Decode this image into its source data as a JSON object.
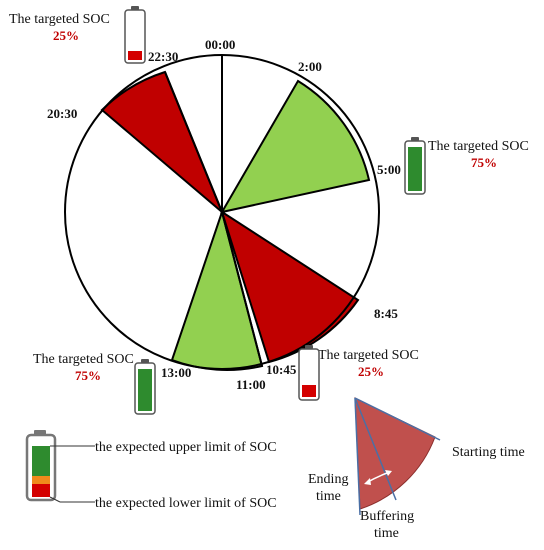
{
  "clock": {
    "times": [
      "00:00",
      "2:00",
      "5:00",
      "8:45",
      "10:45",
      "11:00",
      "13:00",
      "20:30",
      "22:30"
    ],
    "sectors": [
      {
        "from": "2:00",
        "to": "5:00",
        "state": "charging"
      },
      {
        "from": "8:45",
        "to": "10:45",
        "state": "discharging"
      },
      {
        "from": "11:00",
        "to": "13:00",
        "state": "charging"
      },
      {
        "from": "20:30",
        "to": "22:30",
        "state": "discharging"
      }
    ]
  },
  "targets": {
    "top_left": {
      "label": "The targeted SOC",
      "value": "25%"
    },
    "right": {
      "label": "The targeted SOC",
      "value": "75%"
    },
    "bottom_left": {
      "label": "The targeted SOC",
      "value": "75%"
    },
    "bottom_mid": {
      "label": "The targeted SOC",
      "value": "25%"
    }
  },
  "legend": {
    "upper_limit": "the expected upper  limit of SOC",
    "lower_limit": "the expected lower limit of SOC"
  },
  "inset": {
    "starting_time": "Starting time",
    "ending_time_line1": "Ending",
    "ending_time_line2": "time",
    "buffering_line1": "Buffering",
    "buffering_line2": "time"
  },
  "colors": {
    "charge_green": "#92d050",
    "discharge_red": "#c00000",
    "battery_green": "#2e8b2e",
    "battery_red": "#d40000",
    "battery_orange": "#f08a1c",
    "inset_red": "#c0504d"
  }
}
